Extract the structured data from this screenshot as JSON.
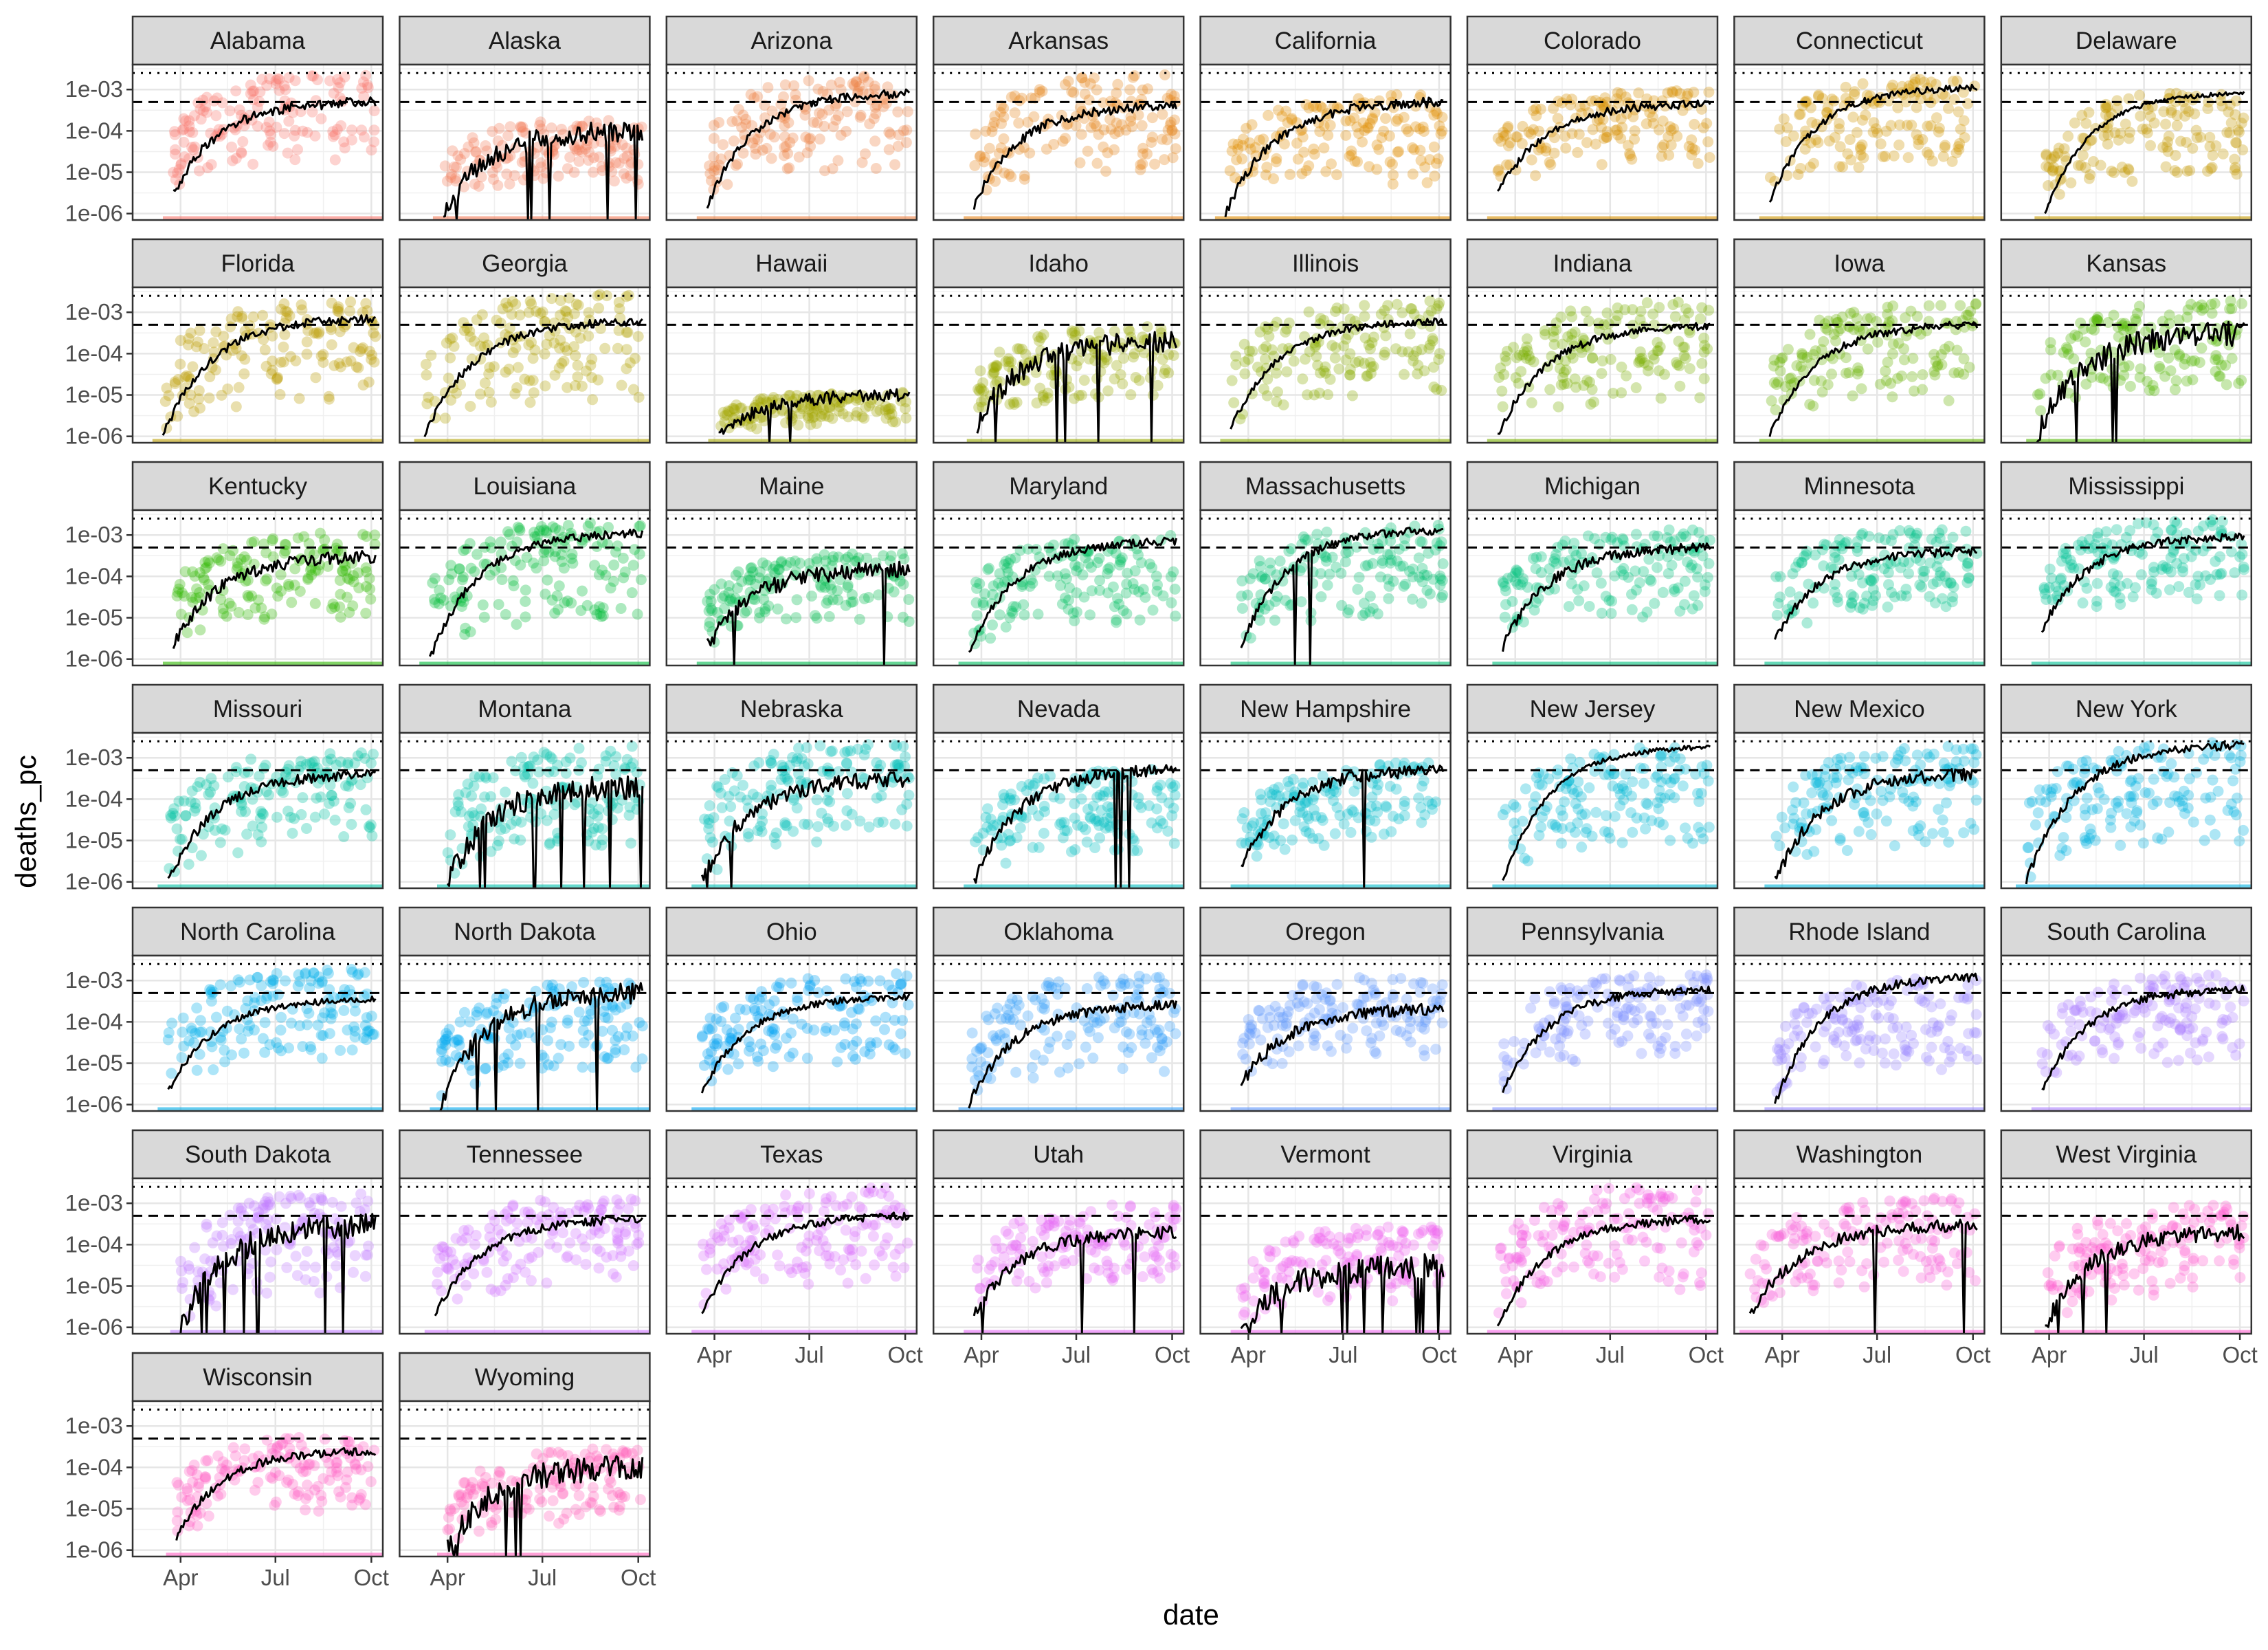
{
  "chart_data": {
    "type": "scatter",
    "facet": "state",
    "xlabel": "date",
    "ylabel": "deaths_pc",
    "yscale": "log10",
    "ylim": [
      7e-07,
      0.004
    ],
    "y_ticks": [
      1e-06,
      1e-05,
      0.0001,
      0.001
    ],
    "y_tick_labels": [
      "1e-06",
      "1e-05",
      "1e-04",
      "1e-03"
    ],
    "xlim": [
      "2020-02-15",
      "2020-10-12"
    ],
    "x_ticks": [
      "2020-04-01",
      "2020-07-01",
      "2020-10-01"
    ],
    "x_tick_labels": [
      "Apr",
      "Jul",
      "Oct"
    ],
    "reference_lines": [
      {
        "style": "dotted",
        "y": 0.0025
      },
      {
        "style": "dashed",
        "y": 0.0005
      }
    ],
    "grid": true,
    "legend": "none",
    "panels": [
      {
        "state": "Alabama",
        "color": "#F8766D",
        "start": "2020-03-25",
        "line_start": 3e-06,
        "line_end": 0.0005,
        "band_top": 0.0025,
        "band_bottom": 3e-06,
        "noise": 0.12
      },
      {
        "state": "Alaska",
        "color": "#F37B59",
        "start": "2020-03-28",
        "line_start": 1e-06,
        "line_end": 0.0001,
        "band_top": 0.0002,
        "band_bottom": 1.5e-06,
        "noise": 0.25,
        "drops": 6
      },
      {
        "state": "Arizona",
        "color": "#ED8141",
        "start": "2020-03-25",
        "line_start": 1.5e-06,
        "line_end": 0.0008,
        "band_top": 0.0025,
        "band_bottom": 1.5e-06,
        "noise": 0.1
      },
      {
        "state": "Arkansas",
        "color": "#E7861B",
        "start": "2020-03-25",
        "line_start": 1.5e-06,
        "line_end": 0.0004,
        "band_top": 0.0025,
        "band_bottom": 1.5e-06,
        "noise": 0.12
      },
      {
        "state": "California",
        "color": "#E08B00",
        "start": "2020-03-10",
        "line_start": 1e-06,
        "line_end": 0.0005,
        "band_top": 0.0008,
        "band_bottom": 1e-06,
        "noise": 0.12
      },
      {
        "state": "Colorado",
        "color": "#D89000",
        "start": "2020-03-15",
        "line_start": 3e-06,
        "line_end": 0.00045,
        "band_top": 0.001,
        "band_bottom": 3e-06,
        "noise": 0.1
      },
      {
        "state": "Connecticut",
        "color": "#CF9400",
        "start": "2020-03-20",
        "line_start": 2e-06,
        "line_end": 0.0011,
        "band_top": 0.002,
        "band_bottom": 2e-06,
        "noise": 0.08
      },
      {
        "state": "Delaware",
        "color": "#C59900",
        "start": "2020-03-28",
        "line_start": 1e-06,
        "line_end": 0.0008,
        "band_top": 0.001,
        "band_bottom": 1e-06,
        "noise": 0.05
      },
      {
        "state": "Florida",
        "color": "#BB9D00",
        "start": "2020-03-15",
        "line_start": 1e-06,
        "line_end": 0.0007,
        "band_top": 0.002,
        "band_bottom": 1e-06,
        "noise": 0.1
      },
      {
        "state": "Georgia",
        "color": "#B0A100",
        "start": "2020-03-10",
        "line_start": 1e-06,
        "line_end": 0.0006,
        "band_top": 0.003,
        "band_bottom": 1e-06,
        "noise": 0.1
      },
      {
        "state": "Hawaii",
        "color": "#A3A500",
        "start": "2020-04-05",
        "line_start": 1e-06,
        "line_end": 1e-05,
        "band_top": 1.2e-05,
        "band_bottom": 1e-06,
        "noise": 0.15,
        "drops": 2
      },
      {
        "state": "Idaho",
        "color": "#97A900",
        "start": "2020-03-28",
        "line_start": 2e-06,
        "line_end": 0.0002,
        "band_top": 0.0005,
        "band_bottom": 2e-06,
        "noise": 0.25,
        "drops": 5
      },
      {
        "state": "Illinois",
        "color": "#88AC00",
        "start": "2020-03-15",
        "line_start": 1.5e-06,
        "line_end": 0.0006,
        "band_top": 0.002,
        "band_bottom": 1.5e-06,
        "noise": 0.08
      },
      {
        "state": "Indiana",
        "color": "#78AF00",
        "start": "2020-03-15",
        "line_start": 1e-06,
        "line_end": 0.00045,
        "band_top": 0.002,
        "band_bottom": 1e-06,
        "noise": 0.1
      },
      {
        "state": "Iowa",
        "color": "#66B200",
        "start": "2020-03-20",
        "line_start": 1e-06,
        "line_end": 0.0005,
        "band_top": 0.002,
        "band_bottom": 1e-06,
        "noise": 0.1
      },
      {
        "state": "Kansas",
        "color": "#50B500",
        "start": "2020-03-20",
        "line_start": 1e-06,
        "line_end": 0.0003,
        "band_top": 0.002,
        "band_bottom": 2e-06,
        "noise": 0.3,
        "drops": 3
      },
      {
        "state": "Kentucky",
        "color": "#2FB700",
        "start": "2020-03-25",
        "line_start": 2e-06,
        "line_end": 0.0003,
        "band_top": 0.0012,
        "band_bottom": 2e-06,
        "noise": 0.15
      },
      {
        "state": "Louisiana",
        "color": "#00BA38",
        "start": "2020-03-15",
        "line_start": 1e-06,
        "line_end": 0.0011,
        "band_top": 0.0025,
        "band_bottom": 1e-06,
        "noise": 0.1
      },
      {
        "state": "Maine",
        "color": "#00BB4E",
        "start": "2020-03-25",
        "line_start": 2e-06,
        "line_end": 0.00015,
        "band_top": 0.0004,
        "band_bottom": 2e-06,
        "noise": 0.2,
        "drops": 2
      },
      {
        "state": "Maryland",
        "color": "#00BD5F",
        "start": "2020-03-20",
        "line_start": 1.5e-06,
        "line_end": 0.0007,
        "band_top": 0.001,
        "band_bottom": 1.5e-06,
        "noise": 0.1
      },
      {
        "state": "Massachusetts",
        "color": "#00BE6F",
        "start": "2020-03-25",
        "line_start": 2e-06,
        "line_end": 0.0013,
        "band_top": 0.0018,
        "band_bottom": 2e-06,
        "noise": 0.1,
        "drops": 2
      },
      {
        "state": "Michigan",
        "color": "#00C07C",
        "start": "2020-03-20",
        "line_start": 2e-06,
        "line_end": 0.0005,
        "band_top": 0.0015,
        "band_bottom": 2e-06,
        "noise": 0.12
      },
      {
        "state": "Minnesota",
        "color": "#00C089",
        "start": "2020-03-25",
        "line_start": 3e-06,
        "line_end": 0.0004,
        "band_top": 0.0015,
        "band_bottom": 3e-06,
        "noise": 0.1
      },
      {
        "state": "Mississippi",
        "color": "#00C195",
        "start": "2020-03-25",
        "line_start": 5e-06,
        "line_end": 0.0009,
        "band_top": 0.0025,
        "band_bottom": 5e-06,
        "noise": 0.1
      },
      {
        "state": "Missouri",
        "color": "#00C0A1",
        "start": "2020-03-20",
        "line_start": 1e-06,
        "line_end": 0.0004,
        "band_top": 0.0015,
        "band_bottom": 1e-06,
        "noise": 0.12
      },
      {
        "state": "Montana",
        "color": "#00C0AC",
        "start": "2020-04-01",
        "line_start": 1e-06,
        "line_end": 0.0002,
        "band_top": 0.002,
        "band_bottom": 1e-06,
        "noise": 0.3,
        "drops": 8
      },
      {
        "state": "Nebraska",
        "color": "#00BFB6",
        "start": "2020-03-20",
        "line_start": 1e-06,
        "line_end": 0.0003,
        "band_top": 0.0025,
        "band_bottom": 1e-06,
        "noise": 0.2,
        "drops": 2
      },
      {
        "state": "Nevada",
        "color": "#00BDC0",
        "start": "2020-03-25",
        "line_start": 1e-06,
        "line_end": 0.0005,
        "band_top": 0.0006,
        "band_bottom": 1e-06,
        "noise": 0.15,
        "drops": 3
      },
      {
        "state": "New Hampshire",
        "color": "#00BBC9",
        "start": "2020-03-25",
        "line_start": 2e-06,
        "line_end": 0.0005,
        "band_top": 0.0008,
        "band_bottom": 2e-06,
        "noise": 0.15,
        "drops": 1
      },
      {
        "state": "New Jersey",
        "color": "#00B8D2",
        "start": "2020-03-20",
        "line_start": 1e-06,
        "line_end": 0.0018,
        "band_top": 0.002,
        "band_bottom": 1e-06,
        "noise": 0.06
      },
      {
        "state": "New Mexico",
        "color": "#00B5DA",
        "start": "2020-03-25",
        "line_start": 1e-06,
        "line_end": 0.0004,
        "band_top": 0.002,
        "band_bottom": 1e-06,
        "noise": 0.15
      },
      {
        "state": "New York",
        "color": "#00B1E1",
        "start": "2020-03-10",
        "line_start": 1e-06,
        "line_end": 0.002,
        "band_top": 0.003,
        "band_bottom": 1e-06,
        "noise": 0.1
      },
      {
        "state": "North Carolina",
        "color": "#00ADE8",
        "start": "2020-03-20",
        "line_start": 2e-06,
        "line_end": 0.00035,
        "band_top": 0.002,
        "band_bottom": 2e-06,
        "noise": 0.08
      },
      {
        "state": "North Dakota",
        "color": "#00A8EE",
        "start": "2020-03-25",
        "line_start": 1e-06,
        "line_end": 0.0005,
        "band_top": 0.001,
        "band_bottom": 1e-06,
        "noise": 0.25,
        "drops": 4
      },
      {
        "state": "Ohio",
        "color": "#00A3F4",
        "start": "2020-03-20",
        "line_start": 2e-06,
        "line_end": 0.0004,
        "band_top": 0.0015,
        "band_bottom": 2e-06,
        "noise": 0.08
      },
      {
        "state": "Oklahoma",
        "color": "#359EF8",
        "start": "2020-03-20",
        "line_start": 1e-06,
        "line_end": 0.00025,
        "band_top": 0.0015,
        "band_bottom": 1e-06,
        "noise": 0.12
      },
      {
        "state": "Oregon",
        "color": "#6198FD",
        "start": "2020-03-25",
        "line_start": 3e-06,
        "line_end": 0.0002,
        "band_top": 0.0015,
        "band_bottom": 3e-06,
        "noise": 0.15
      },
      {
        "state": "Pennsylvania",
        "color": "#8191FF",
        "start": "2020-03-20",
        "line_start": 2e-06,
        "line_end": 0.0006,
        "band_top": 0.0015,
        "band_bottom": 2e-06,
        "noise": 0.1
      },
      {
        "state": "Rhode Island",
        "color": "#9A8AFF",
        "start": "2020-03-25",
        "line_start": 1e-06,
        "line_end": 0.0012,
        "band_top": 0.0013,
        "band_bottom": 1e-06,
        "noise": 0.1
      },
      {
        "state": "South Carolina",
        "color": "#AE82FF",
        "start": "2020-03-25",
        "line_start": 2e-06,
        "line_end": 0.0006,
        "band_top": 0.0015,
        "band_bottom": 2e-06,
        "noise": 0.1
      },
      {
        "state": "South Dakota",
        "color": "#C07BFF",
        "start": "2020-04-01",
        "line_start": 1e-06,
        "line_end": 0.0003,
        "band_top": 0.002,
        "band_bottom": 1e-06,
        "noise": 0.3,
        "drops": 8
      },
      {
        "state": "Tennessee",
        "color": "#CF74FF",
        "start": "2020-03-20",
        "line_start": 2e-06,
        "line_end": 0.0004,
        "band_top": 0.0015,
        "band_bottom": 2e-06,
        "noise": 0.1
      },
      {
        "state": "Texas",
        "color": "#DB6FFB",
        "start": "2020-03-20",
        "line_start": 2e-06,
        "line_end": 0.0005,
        "band_top": 0.0025,
        "band_bottom": 2e-06,
        "noise": 0.1
      },
      {
        "state": "Utah",
        "color": "#E56BF5",
        "start": "2020-03-25",
        "line_start": 2e-06,
        "line_end": 0.0002,
        "band_top": 0.001,
        "band_bottom": 2e-06,
        "noise": 0.15,
        "drops": 3
      },
      {
        "state": "Vermont",
        "color": "#EE67EE",
        "start": "2020-03-25",
        "line_start": 1e-06,
        "line_end": 3e-05,
        "band_top": 0.0003,
        "band_bottom": 1e-06,
        "noise": 0.3,
        "drops": 10
      },
      {
        "state": "Virginia",
        "color": "#F564E4",
        "start": "2020-03-15",
        "line_start": 1e-06,
        "line_end": 0.0004,
        "band_top": 0.003,
        "band_bottom": 1e-06,
        "noise": 0.1
      },
      {
        "state": "Washington",
        "color": "#FA62DA",
        "start": "2020-03-01",
        "line_start": 2e-06,
        "line_end": 0.0003,
        "band_top": 0.0015,
        "band_bottom": 2e-06,
        "noise": 0.15,
        "drops": 2
      },
      {
        "state": "West Virginia",
        "color": "#FE61CF",
        "start": "2020-03-28",
        "line_start": 1e-06,
        "line_end": 0.0002,
        "band_top": 0.001,
        "band_bottom": 1e-06,
        "noise": 0.2,
        "drops": 3
      },
      {
        "state": "Wisconsin",
        "color": "#FF61C3",
        "start": "2020-03-28",
        "line_start": 2e-06,
        "line_end": 0.00025,
        "band_top": 0.0006,
        "band_bottom": 2e-06,
        "noise": 0.1
      },
      {
        "state": "Wyoming",
        "color": "#FF62BC",
        "start": "2020-04-01",
        "line_start": 1e-06,
        "line_end": 0.0001,
        "band_top": 0.0003,
        "band_bottom": 1e-06,
        "noise": 0.3,
        "drops": 6
      }
    ]
  }
}
